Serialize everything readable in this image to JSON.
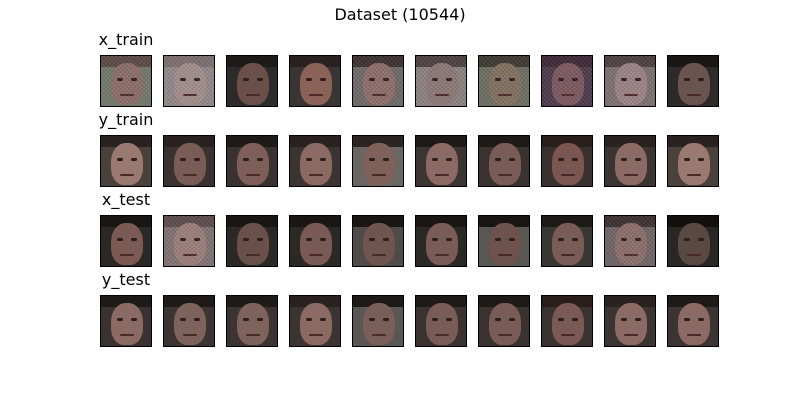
{
  "figure": {
    "title": "Dataset (10544)"
  },
  "rows": [
    {
      "label": "x_train",
      "images": [
        {
          "noisy": true,
          "tone": "#8a6f66",
          "bg": "#6e7a6a",
          "hair": "#5a4a44"
        },
        {
          "noisy": true,
          "tone": "#a0908a",
          "bg": "#8f8a88",
          "hair": "#7a7070"
        },
        {
          "noisy": false,
          "tone": "#6a5048",
          "bg": "#2c2a2a",
          "hair": "#1e1a18"
        },
        {
          "noisy": false,
          "tone": "#8a6258",
          "bg": "#3a3433",
          "hair": "#2a2220"
        },
        {
          "noisy": true,
          "tone": "#8c7068",
          "bg": "#6c6a64",
          "hair": "#3a3230"
        },
        {
          "noisy": true,
          "tone": "#8a7a74",
          "bg": "#8a8480",
          "hair": "#4a4240"
        },
        {
          "noisy": true,
          "tone": "#80725c",
          "bg": "#6a7060",
          "hair": "#3a3a30"
        },
        {
          "noisy": true,
          "tone": "#7a5a5c",
          "bg": "#4a3a48",
          "hair": "#3a2a34"
        },
        {
          "noisy": true,
          "tone": "#9a8684",
          "bg": "#7a7270",
          "hair": "#4a4240"
        },
        {
          "noisy": false,
          "tone": "#6a5450",
          "bg": "#2e2a2a",
          "hair": "#1a1616"
        }
      ]
    },
    {
      "label": "y_train",
      "images": [
        {
          "noisy": false,
          "tone": "#9a7a70",
          "bg": "#4a403c",
          "hair": "#2a2220"
        },
        {
          "noisy": false,
          "tone": "#7a5c56",
          "bg": "#3a3230",
          "hair": "#2a2220"
        },
        {
          "noisy": false,
          "tone": "#7e5e58",
          "bg": "#3a3230",
          "hair": "#1e1a18"
        },
        {
          "noisy": false,
          "tone": "#8a6a62",
          "bg": "#3c3432",
          "hair": "#2a2220"
        },
        {
          "noisy": false,
          "tone": "#7e625a",
          "bg": "#6a6664",
          "hair": "#2a2422"
        },
        {
          "noisy": false,
          "tone": "#8a6a62",
          "bg": "#3c3432",
          "hair": "#1e1a18"
        },
        {
          "noisy": false,
          "tone": "#7a5c56",
          "bg": "#3a3230",
          "hair": "#1e1a18"
        },
        {
          "noisy": false,
          "tone": "#7a5650",
          "bg": "#3a302e",
          "hair": "#2a1e1c"
        },
        {
          "noisy": false,
          "tone": "#8a6c64",
          "bg": "#3c3432",
          "hair": "#2a2220"
        },
        {
          "noisy": false,
          "tone": "#9a7a70",
          "bg": "#4a403c",
          "hair": "#2a2220"
        }
      ]
    },
    {
      "label": "x_test",
      "images": [
        {
          "noisy": false,
          "tone": "#7a5a52",
          "bg": "#2c2826",
          "hair": "#1a1614"
        },
        {
          "noisy": true,
          "tone": "#9a807a",
          "bg": "#7e7470",
          "hair": "#5a4e4a"
        },
        {
          "noisy": false,
          "tone": "#6a504a",
          "bg": "#2c2826",
          "hair": "#1a1614"
        },
        {
          "noisy": false,
          "tone": "#7a5a54",
          "bg": "#2c2826",
          "hair": "#1a1614"
        },
        {
          "noisy": false,
          "tone": "#6e564e",
          "bg": "#504a48",
          "hair": "#1a1614"
        },
        {
          "noisy": false,
          "tone": "#7a5c56",
          "bg": "#2c2826",
          "hair": "#1a1614"
        },
        {
          "noisy": false,
          "tone": "#6e524c",
          "bg": "#5a5654",
          "hair": "#1a1614"
        },
        {
          "noisy": false,
          "tone": "#7a5c56",
          "bg": "#3a3634",
          "hair": "#1e1a18"
        },
        {
          "noisy": true,
          "tone": "#8a7068",
          "bg": "#6c6664",
          "hair": "#3a3230"
        },
        {
          "noisy": false,
          "tone": "#5a4844",
          "bg": "#2a2624",
          "hair": "#14100e"
        }
      ]
    },
    {
      "label": "y_test",
      "images": [
        {
          "noisy": false,
          "tone": "#8a6a62",
          "bg": "#3a3230",
          "hair": "#1e1a18"
        },
        {
          "noisy": false,
          "tone": "#7e625c",
          "bg": "#3c3432",
          "hair": "#1e1a18"
        },
        {
          "noisy": false,
          "tone": "#7e625c",
          "bg": "#3c3432",
          "hair": "#1e1a18"
        },
        {
          "noisy": false,
          "tone": "#8a6a62",
          "bg": "#3c3432",
          "hair": "#2a2220"
        },
        {
          "noisy": false,
          "tone": "#7a5e58",
          "bg": "#5a5654",
          "hair": "#1e1a18"
        },
        {
          "noisy": false,
          "tone": "#7a5c56",
          "bg": "#3a3230",
          "hair": "#1e1a18"
        },
        {
          "noisy": false,
          "tone": "#7a5c56",
          "bg": "#3a3230",
          "hair": "#1e1a18"
        },
        {
          "noisy": false,
          "tone": "#7a5a54",
          "bg": "#3a3230",
          "hair": "#2a1e1c"
        },
        {
          "noisy": false,
          "tone": "#8a6c64",
          "bg": "#3c3432",
          "hair": "#2a2220"
        },
        {
          "noisy": false,
          "tone": "#8a6a62",
          "bg": "#3c3432",
          "hair": "#1e1a18"
        }
      ]
    }
  ]
}
